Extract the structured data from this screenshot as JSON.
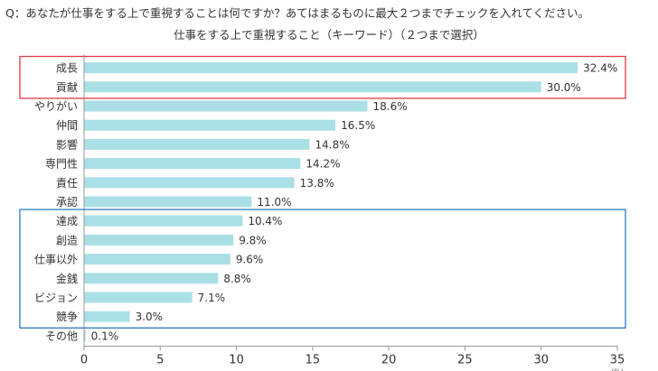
{
  "question": "Q：あなたが仕事をする上で重視することは何ですか？あてはまるものに最大２つまでチェックを入れてください。",
  "colors": {
    "bar": "#aadfe6",
    "red_box": "#e03c46",
    "blue_box": "#2a7bc0",
    "axis": "#999999"
  },
  "chart_data": {
    "type": "bar",
    "orientation": "horizontal",
    "title": "仕事をする上で重視すること（キーワード）（２つまで選択）",
    "categories": [
      "成長",
      "貢献",
      "やりがい",
      "仲間",
      "影響",
      "専門性",
      "責任",
      "承認",
      "達成",
      "創造",
      "仕事以外",
      "金銭",
      "ビジョン",
      "競争",
      "その他"
    ],
    "values": [
      32.4,
      30.0,
      18.6,
      16.5,
      14.8,
      14.2,
      13.8,
      11.0,
      10.4,
      9.8,
      9.6,
      8.8,
      7.1,
      3.0,
      0.1
    ],
    "value_labels": [
      "32.4%",
      "30.0%",
      "18.6%",
      "16.5%",
      "14.8%",
      "14.2%",
      "13.8%",
      "11.0%",
      "10.4%",
      "9.8%",
      "9.6%",
      "8.8%",
      "7.1%",
      "3.0%",
      "0.1%"
    ],
    "xlim": [
      0,
      35
    ],
    "xticks": [
      0,
      5,
      10,
      15,
      20,
      25,
      30,
      35
    ],
    "x_unit": "(%)",
    "grid": false,
    "highlight_groups": [
      {
        "color": "red",
        "categories": [
          "成長",
          "貢献"
        ]
      },
      {
        "color": "blue",
        "categories": [
          "達成",
          "創造",
          "仕事以外",
          "金銭",
          "ビジョン",
          "競争"
        ]
      }
    ]
  }
}
